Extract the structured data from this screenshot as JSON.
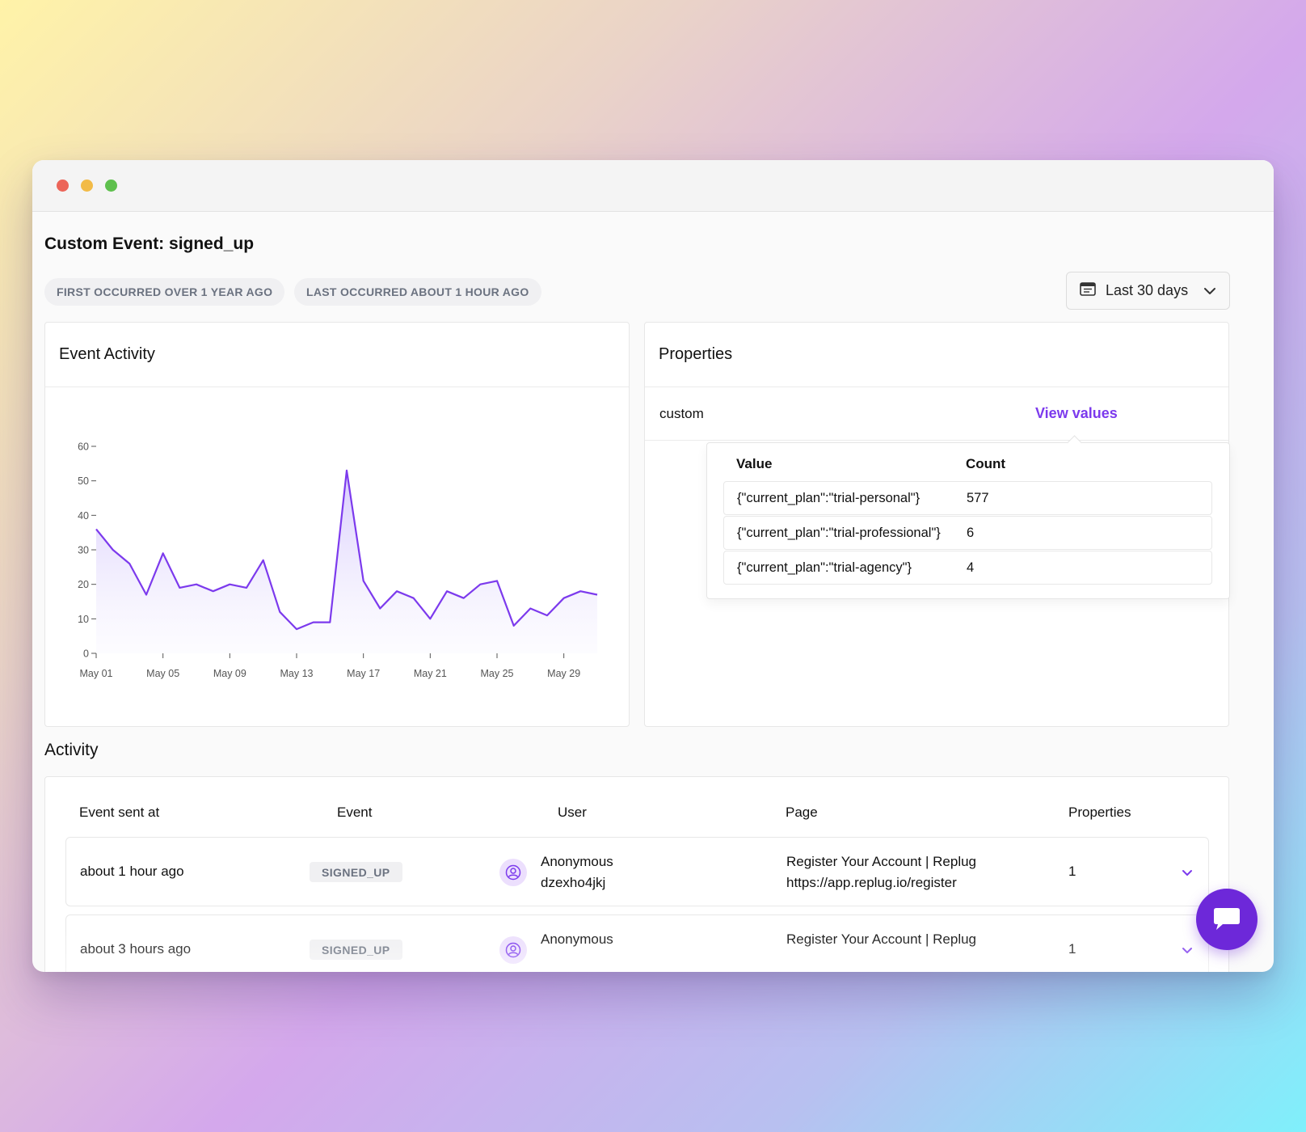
{
  "page": {
    "title": "Custom Event: signed_up",
    "first_occurred": "FIRST OCCURRED OVER 1 YEAR AGO",
    "last_occurred": "LAST OCCURRED ABOUT 1 HOUR AGO",
    "date_range": "Last 30 days"
  },
  "event_activity": {
    "title": "Event Activity"
  },
  "chart_data": {
    "type": "area",
    "title": "Event Activity",
    "x": [
      "May 01",
      "May 02",
      "May 03",
      "May 04",
      "May 05",
      "May 06",
      "May 07",
      "May 08",
      "May 09",
      "May 10",
      "May 11",
      "May 12",
      "May 13",
      "May 14",
      "May 15",
      "May 16",
      "May 17",
      "May 18",
      "May 19",
      "May 20",
      "May 21",
      "May 22",
      "May 23",
      "May 24",
      "May 25",
      "May 26",
      "May 27",
      "May 28",
      "May 29",
      "May 30",
      "May 31"
    ],
    "series": [
      {
        "name": "signed_up",
        "values": [
          36,
          30,
          26,
          17,
          29,
          19,
          20,
          18,
          20,
          19,
          27,
          12,
          7,
          9,
          9,
          53,
          21,
          13,
          18,
          16,
          10,
          18,
          16,
          20,
          21,
          8,
          13,
          11,
          16,
          18,
          17
        ]
      }
    ],
    "x_tick_labels": [
      "May 01",
      "May 05",
      "May 09",
      "May 13",
      "May 17",
      "May 21",
      "May 25",
      "May 29"
    ],
    "y_tick_labels": [
      "0",
      "10",
      "20",
      "30",
      "40",
      "50",
      "60"
    ],
    "ylim": [
      0,
      60
    ],
    "xlabel": "",
    "ylabel": "",
    "color": "#7c3aed"
  },
  "properties": {
    "title": "Properties",
    "row_name": "custom",
    "view_values_label": "View values",
    "popover": {
      "value_header": "Value",
      "count_header": "Count",
      "rows": [
        {
          "value": "{\"current_plan\":\"trial-personal\"}",
          "count": "577"
        },
        {
          "value": "{\"current_plan\":\"trial-professional\"}",
          "count": "6"
        },
        {
          "value": "{\"current_plan\":\"trial-agency\"}",
          "count": "4"
        }
      ]
    }
  },
  "activity": {
    "title": "Activity",
    "columns": [
      "Event sent at",
      "Event",
      "User",
      "Page",
      "Properties"
    ],
    "rows": [
      {
        "sent_at": "about 1 hour ago",
        "event": "SIGNED_UP",
        "user": "Anonymous",
        "user_id": "dzexho4jkj",
        "page_title": "Register Your Account | Replug",
        "page_url": "https://app.replug.io/register",
        "properties": "1"
      },
      {
        "sent_at": "about 3 hours ago",
        "event": "SIGNED_UP",
        "user": "Anonymous",
        "user_id": "",
        "page_title": "Register Your Account | Replug",
        "page_url": "",
        "properties": "1"
      }
    ]
  },
  "colors": {
    "accent": "#7c3aed",
    "chat_button": "#6d28d9"
  },
  "icons": {
    "calendar": "calendar-icon",
    "chevron": "chevron-down-icon",
    "user": "user-circle-icon",
    "chat": "chat-icon"
  }
}
